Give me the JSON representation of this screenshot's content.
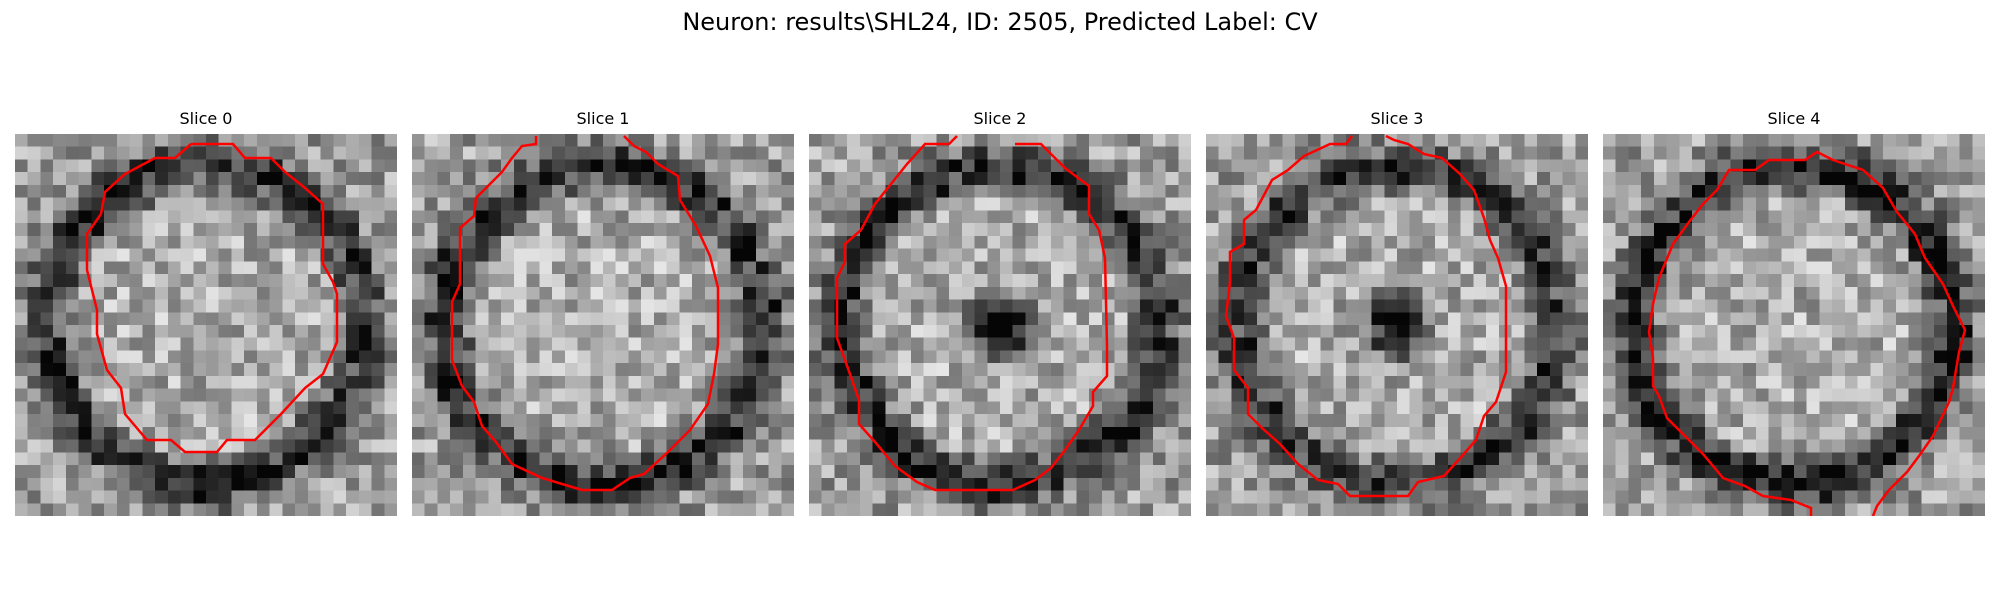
{
  "figure": {
    "suptitle": "Neuron: results\\SHL24, ID: 2505, Predicted Label: CV"
  },
  "panels": [
    {
      "title": "Slice 0",
      "seed": 11,
      "center_dark": 0.0,
      "ring_dark": 0.55
    },
    {
      "title": "Slice 1",
      "seed": 23,
      "center_dark": 0.0,
      "ring_dark": 0.55
    },
    {
      "title": "Slice 2",
      "seed": 37,
      "center_dark": 0.9,
      "ring_dark": 0.55
    },
    {
      "title": "Slice 3",
      "seed": 41,
      "center_dark": 0.75,
      "ring_dark": 0.5
    },
    {
      "title": "Slice 4",
      "seed": 53,
      "center_dark": 0.0,
      "ring_dark": 0.6
    }
  ],
  "contour": {
    "color": "#ff0000"
  }
}
